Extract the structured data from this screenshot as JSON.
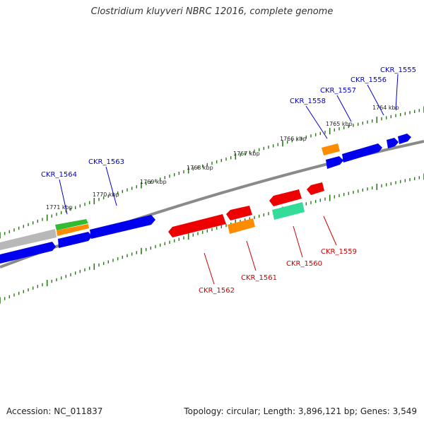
{
  "title": "Clostridium kluyveri NBRC 12016, complete genome",
  "accession": "Accession: NC_011837",
  "summary": "Topology: circular; Length: 3,896,121 bp; Genes: 3,549",
  "colors": {
    "forward_label": "#0000cc",
    "reverse_label": "#cc0000",
    "tick": "#2a7a1a",
    "backbone": "#8a8a8a"
  },
  "scale_labels": [
    "1771 kbp",
    "1770 kbp",
    "1769 kbp",
    "1768 kbp",
    "1767 kbp",
    "1766 kbp",
    "1765 kbp",
    "1764 kbp"
  ],
  "genes": {
    "forward": [
      "CKR_1564",
      "CKR_1563",
      "CKR_1558",
      "CKR_1557",
      "CKR_1556",
      "CKR_1555"
    ],
    "reverse": [
      "CKR_1562",
      "CKR_1561",
      "CKR_1560",
      "CKR_1559"
    ]
  }
}
